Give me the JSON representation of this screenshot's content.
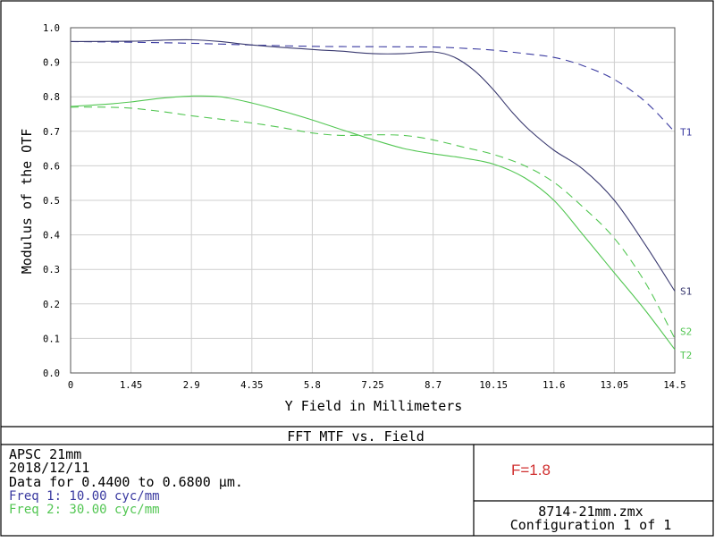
{
  "chart_data": {
    "type": "line",
    "title": "FFT MTF vs. Field",
    "xlabel": "Y Field in Millimeters",
    "ylabel": "Modulus of the OTF",
    "xlim": [
      0,
      14.5
    ],
    "ylim": [
      0,
      1.0
    ],
    "x_ticks": [
      "0",
      "1.45",
      "2.9",
      "4.35",
      "5.8",
      "7.25",
      "8.7",
      "10.15",
      "11.6",
      "13.05",
      "14.5"
    ],
    "y_ticks": [
      "0.0",
      "0.1",
      "0.2",
      "0.3",
      "0.4",
      "0.5",
      "0.6",
      "0.7",
      "0.8",
      "0.9",
      "1.0"
    ],
    "grid": true,
    "series": [
      {
        "name": "T1",
        "color": "#3a3aa0",
        "dash": true,
        "x": [
          0,
          1.45,
          2.9,
          4.35,
          5.8,
          7.25,
          8.7,
          9.5,
          10.15,
          10.9,
          11.6,
          12.3,
          13.05,
          13.8,
          14.5
        ],
        "y": [
          0.96,
          0.958,
          0.955,
          0.95,
          0.946,
          0.945,
          0.944,
          0.94,
          0.935,
          0.925,
          0.914,
          0.89,
          0.85,
          0.785,
          0.698
        ]
      },
      {
        "name": "S1",
        "color": "#3a3a70",
        "dash": false,
        "x": [
          0,
          1.45,
          2.2,
          2.9,
          3.6,
          4.35,
          5.8,
          6.5,
          7.25,
          8.0,
          8.7,
          9.2,
          9.7,
          10.15,
          10.6,
          11.0,
          11.6,
          12.3,
          13.05,
          13.8,
          14.5
        ],
        "y": [
          0.96,
          0.961,
          0.964,
          0.965,
          0.96,
          0.95,
          0.937,
          0.932,
          0.925,
          0.925,
          0.93,
          0.915,
          0.875,
          0.82,
          0.755,
          0.705,
          0.645,
          0.59,
          0.5,
          0.37,
          0.237
        ]
      },
      {
        "name": "S2",
        "color": "#52c652",
        "dash": true,
        "x": [
          0,
          0.8,
          1.45,
          2.2,
          2.9,
          3.6,
          4.35,
          5.1,
          5.8,
          6.5,
          7.25,
          8.0,
          8.7,
          9.4,
          10.15,
          10.9,
          11.6,
          12.3,
          13.05,
          13.8,
          14.5
        ],
        "y": [
          0.77,
          0.77,
          0.767,
          0.757,
          0.745,
          0.735,
          0.724,
          0.71,
          0.695,
          0.688,
          0.69,
          0.688,
          0.675,
          0.655,
          0.633,
          0.6,
          0.552,
          0.48,
          0.39,
          0.26,
          0.1
        ]
      },
      {
        "name": "T2",
        "color": "#52c652",
        "dash": false,
        "x": [
          0,
          0.8,
          1.45,
          2.2,
          2.9,
          3.6,
          4.35,
          5.1,
          5.8,
          6.5,
          7.25,
          8.0,
          8.7,
          9.4,
          10.15,
          10.9,
          11.6,
          12.3,
          13.05,
          13.8,
          14.5
        ],
        "y": [
          0.772,
          0.778,
          0.785,
          0.796,
          0.802,
          0.8,
          0.782,
          0.758,
          0.733,
          0.705,
          0.676,
          0.65,
          0.635,
          0.623,
          0.605,
          0.565,
          0.5,
          0.4,
          0.29,
          0.18,
          0.068
        ]
      }
    ]
  },
  "info": {
    "line1": "APSC   21mm",
    "line2": "2018/12/11",
    "line3": "Data for 0.4400 to 0.6800 µm.",
    "freq1": "Freq 1:   10.00 cyc/mm",
    "freq2": "Freq 2:   30.00 cyc/mm",
    "fnumber": "F=1.8",
    "file": "8714-21mm.zmx",
    "config": "Configuration 1 of 1"
  },
  "colors": {
    "freq1": "#3a3aa0",
    "freq2": "#52c652",
    "fnumber": "#d03030"
  }
}
